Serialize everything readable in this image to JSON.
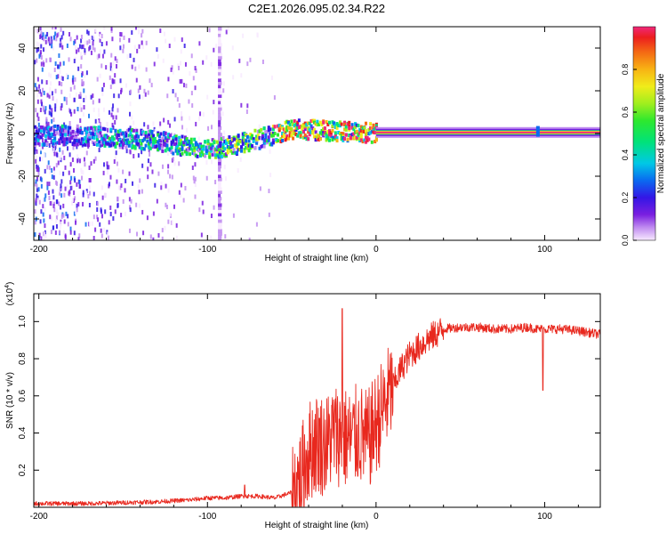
{
  "title": "C2E1.2026.095.02.34.R22",
  "colors": {
    "background": "#ffffff",
    "axis": "#000000",
    "snr_line": "#e8281e",
    "noise_purple": "#7a1fe0",
    "carrier_red": "#e21818"
  },
  "chart_data": [
    {
      "type": "heatmap",
      "name": "spectrogram",
      "xlabel": "Height of straight line (km)",
      "ylabel": "Frequency (Hz)",
      "xlim": [
        -203,
        133
      ],
      "ylim": [
        -50,
        50
      ],
      "x_ticks": [
        -200,
        -100,
        0,
        100
      ],
      "y_ticks": [
        -40,
        -20,
        0,
        20,
        40
      ],
      "features": [
        {
          "label": "ionospheric noise (scattered)",
          "x_range": [
            -203,
            -60
          ],
          "freq_range": [
            -50,
            50
          ],
          "amplitude": 0.2
        },
        {
          "label": "broadened carrier",
          "x_range": [
            -203,
            0
          ],
          "freq_center": [
            -1,
            -1,
            -2,
            -4,
            -8,
            -4,
            2,
            1,
            0
          ],
          "amplitude": 0.45
        },
        {
          "label": "vertical artifact",
          "x": -93,
          "freq_range": [
            -50,
            50
          ]
        },
        {
          "label": "clean carrier",
          "x_range": [
            0,
            133
          ],
          "freq": 0.5,
          "amplitude": 1.0
        },
        {
          "label": "spike",
          "x": 96,
          "freq": 1
        }
      ],
      "colorbar": {
        "label": "Normalized spectral amplitude",
        "min": 0.0,
        "max": 1.0,
        "ticks": [
          "0.0",
          "0.2",
          "0.4",
          "0.6",
          "0.8"
        ],
        "tick_values": [
          0.0,
          0.2,
          0.4,
          0.6,
          0.8
        ],
        "colors": [
          "#f8eaff",
          "#c08cf0",
          "#7a1fe0",
          "#3416e6",
          "#0a6af0",
          "#00c8e6",
          "#00e27a",
          "#2ee82e",
          "#a0ee1e",
          "#f0ec1a",
          "#f8b414",
          "#f46a14",
          "#ec1e1e",
          "#f0287a"
        ]
      }
    },
    {
      "type": "line",
      "name": "snr",
      "xlabel": "Height of straight line (km)",
      "ylabel": "SNR (10 * v/v)",
      "y_multiplier": "(x10",
      "y_multiplier_exp": "4",
      "y_multiplier_close": ")",
      "xlim": [
        -203,
        133
      ],
      "ylim": [
        0.0,
        1.15
      ],
      "x_ticks": [
        -200,
        -100,
        0,
        100
      ],
      "y_ticks": [
        0.2,
        0.4,
        0.6,
        0.8,
        1.0
      ],
      "series": [
        {
          "name": "SNR",
          "x": [
            -203,
            -190,
            -170,
            -150,
            -130,
            -110,
            -100,
            -90,
            -80,
            -70,
            -60,
            -50,
            -45,
            -40,
            -35,
            -30,
            -25,
            -20,
            -15,
            -10,
            -5,
            0,
            5,
            10,
            15,
            20,
            30,
            40,
            50,
            60,
            70,
            80,
            90,
            95,
            100,
            105,
            110,
            120,
            133
          ],
          "y": [
            0.02,
            0.02,
            0.02,
            0.025,
            0.03,
            0.04,
            0.05,
            0.05,
            0.06,
            0.06,
            0.05,
            0.08,
            0.15,
            0.3,
            0.35,
            0.33,
            0.4,
            0.38,
            0.36,
            0.4,
            0.35,
            0.45,
            0.55,
            0.65,
            0.75,
            0.82,
            0.9,
            0.96,
            0.97,
            0.97,
            0.96,
            0.96,
            0.97,
            0.96,
            0.96,
            0.96,
            0.96,
            0.95,
            0.93
          ],
          "spikes": [
            {
              "x": -20,
              "y": 1.07
            },
            {
              "x": -78,
              "y": 0.12
            },
            {
              "x": 99,
              "y": 1.12
            },
            {
              "x": 99,
              "y": 0.63
            }
          ]
        }
      ]
    }
  ]
}
